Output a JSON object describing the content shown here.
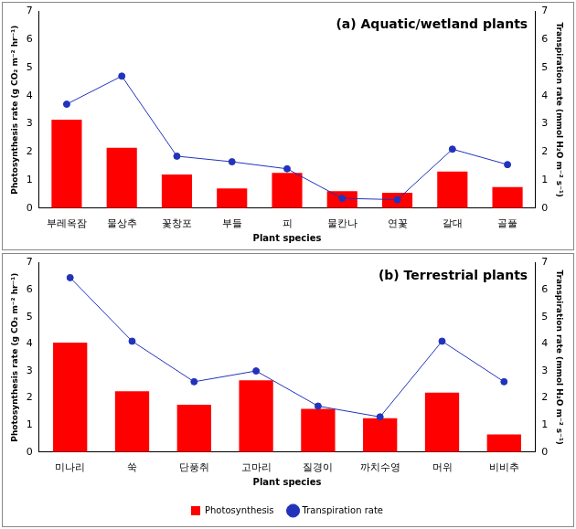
{
  "chart_data": [
    {
      "type": "bar",
      "title": "(a) Aquatic/wetland plants",
      "x_label": "Plant species",
      "y_label": "Photosynthesis rate (g CO₂ m⁻² hr⁻¹)",
      "y2_label": "Transpiration rate (mmol H₂O m⁻² s⁻¹)",
      "categories": [
        "부레옥잠",
        "물상추",
        "꽃창포",
        "부들",
        "피",
        "물칸나",
        "연꽃",
        "갈대",
        "골풀"
      ],
      "series": [
        {
          "name": "Photosynthesis",
          "type": "bar",
          "color": "#ff0000",
          "values": [
            3.15,
            2.15,
            1.2,
            0.7,
            1.25,
            0.6,
            0.55,
            1.3,
            0.75
          ]
        },
        {
          "name": "Transpiration rate",
          "type": "line",
          "color": "#2233bb",
          "marker": "circle",
          "line_style": "solid",
          "axis": "y2",
          "values": [
            3.7,
            4.7,
            1.85,
            1.65,
            1.4,
            0.35,
            0.3,
            2.1,
            1.55
          ]
        }
      ],
      "ylim": [
        0,
        7
      ],
      "yticks": [
        0,
        1,
        2,
        3,
        4,
        5,
        6,
        7
      ],
      "y2lim": [
        0,
        7
      ],
      "y2ticks": [
        0,
        1,
        2,
        3,
        4,
        5,
        6,
        7
      ],
      "grid": false
    },
    {
      "type": "bar",
      "title": "(b) Terrestrial plants",
      "x_label": "Plant species",
      "y_label": "Photosynthesis rate (g CO₂ m⁻² hr⁻¹)",
      "y2_label": "Transpiration rate (mmol H₂O m⁻² s⁻¹)",
      "categories": [
        "미나리",
        "쑥",
        "단풍취",
        "고마리",
        "질경이",
        "까치수영",
        "머위",
        "비비추"
      ],
      "series": [
        {
          "name": "Photosynthesis",
          "type": "bar",
          "color": "#ff0000",
          "values": [
            4.05,
            2.25,
            1.75,
            2.65,
            1.6,
            1.25,
            2.2,
            0.65
          ]
        },
        {
          "name": "Transpiration rate",
          "type": "line",
          "color": "#2233bb",
          "marker": "circle",
          "line_style": "solid",
          "axis": "y2",
          "values": [
            6.45,
            4.1,
            2.6,
            3.0,
            1.7,
            1.3,
            4.1,
            2.6
          ]
        }
      ],
      "ylim": [
        0,
        7
      ],
      "yticks": [
        0,
        1,
        2,
        3,
        4,
        5,
        6,
        7
      ],
      "y2lim": [
        0,
        7
      ],
      "y2ticks": [
        0,
        1,
        2,
        3,
        4,
        5,
        6,
        7
      ],
      "grid": false,
      "legend": "bottom"
    }
  ]
}
